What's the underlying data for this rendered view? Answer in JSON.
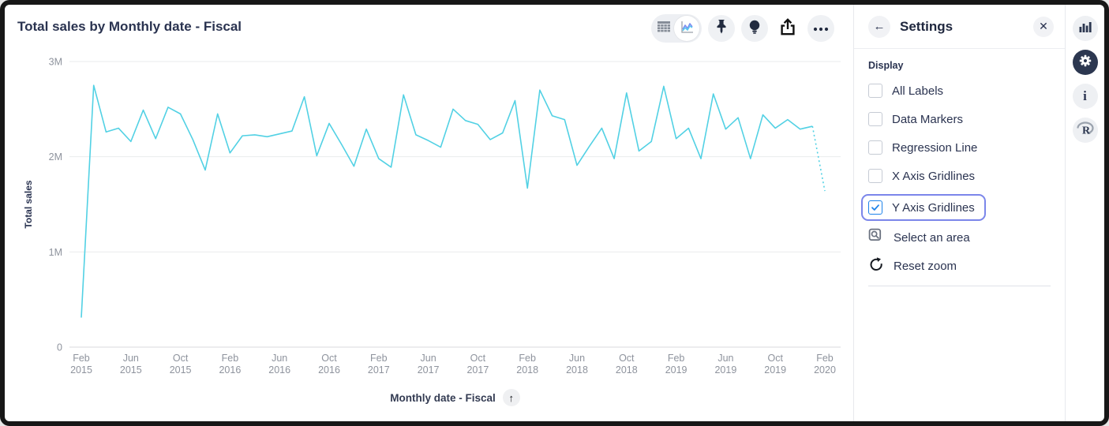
{
  "header": {
    "title": "Total sales by Monthly date - Fiscal"
  },
  "toolbar": {
    "segmented": {
      "options": [
        "table-view",
        "chart-view"
      ],
      "selected": "chart-view"
    },
    "icons": [
      "pin-icon",
      "lightbulb-icon",
      "share-icon",
      "ellipsis-icon"
    ]
  },
  "chart_data": {
    "type": "line",
    "title": "Total sales by Monthly date - Fiscal",
    "ylabel": "Total sales",
    "xlabel": "Monthly date - Fiscal",
    "unit": "millions",
    "ylim": [
      0,
      3000000
    ],
    "ytick_labels": [
      "0",
      "1M",
      "2M",
      "3M"
    ],
    "grid": "y-gridlines-only",
    "tick_every": 4,
    "last_segment_dotted": true,
    "line_color": "#52d1e4",
    "x": [
      "Feb 2015",
      "Mar 2015",
      "Apr 2015",
      "May 2015",
      "Jun 2015",
      "Jul 2015",
      "Aug 2015",
      "Sep 2015",
      "Oct 2015",
      "Nov 2015",
      "Dec 2015",
      "Jan 2016",
      "Feb 2016",
      "Mar 2016",
      "Apr 2016",
      "May 2016",
      "Jun 2016",
      "Jul 2016",
      "Aug 2016",
      "Sep 2016",
      "Oct 2016",
      "Nov 2016",
      "Dec 2016",
      "Jan 2017",
      "Feb 2017",
      "Mar 2017",
      "Apr 2017",
      "May 2017",
      "Jun 2017",
      "Jul 2017",
      "Aug 2017",
      "Sep 2017",
      "Oct 2017",
      "Nov 2017",
      "Dec 2017",
      "Jan 2018",
      "Feb 2018",
      "Mar 2018",
      "Apr 2018",
      "May 2018",
      "Jun 2018",
      "Jul 2018",
      "Aug 2018",
      "Sep 2018",
      "Oct 2018",
      "Nov 2018",
      "Dec 2018",
      "Jan 2019",
      "Feb 2019",
      "Mar 2019",
      "Apr 2019",
      "May 2019",
      "Jun 2019",
      "Jul 2019",
      "Aug 2019",
      "Sep 2019",
      "Oct 2019",
      "Nov 2019",
      "Dec 2019",
      "Jan 2020",
      "Feb 2020"
    ],
    "values_millions": [
      0.31,
      2.75,
      2.26,
      2.3,
      2.16,
      2.49,
      2.19,
      2.52,
      2.45,
      2.18,
      1.86,
      2.45,
      2.04,
      2.22,
      2.23,
      2.21,
      2.24,
      2.27,
      2.63,
      2.01,
      2.35,
      2.13,
      1.9,
      2.29,
      1.98,
      1.89,
      2.65,
      2.23,
      2.17,
      2.1,
      2.5,
      2.38,
      2.34,
      2.18,
      2.25,
      2.59,
      1.67,
      2.7,
      2.43,
      2.39,
      1.91,
      2.11,
      2.3,
      1.98,
      2.67,
      2.06,
      2.16,
      2.74,
      2.19,
      2.3,
      1.98,
      2.66,
      2.29,
      2.41,
      1.98,
      2.44,
      2.3,
      2.39,
      2.29,
      2.32,
      1.64
    ]
  },
  "xaxis": {
    "label": "Monthly date - Fiscal",
    "sort_icon": "arrow-up-icon"
  },
  "settings_panel": {
    "title": "Settings",
    "section_label": "Display",
    "checkboxes": [
      {
        "label": "All Labels",
        "checked": false
      },
      {
        "label": "Data Markers",
        "checked": false
      },
      {
        "label": "Regression Line",
        "checked": false
      },
      {
        "label": "X Axis Gridlines",
        "checked": false
      },
      {
        "label": "Y Axis Gridlines",
        "checked": true,
        "focused": true
      }
    ],
    "actions": [
      {
        "label": "Select an area",
        "icon": "select-area-icon"
      },
      {
        "label": "Reset zoom",
        "icon": "reset-zoom-icon"
      }
    ]
  },
  "right_rail": {
    "icons": [
      "bar-chart-icon",
      "gear-icon",
      "info-icon",
      "r-logo-icon"
    ],
    "active": "gear-icon"
  },
  "colors": {
    "line": "#52d1e4",
    "checkbox_checked": "#1d83ea",
    "focus_ring": "#7b86ea",
    "active_circle": "#2c3750",
    "gridline": "#eaebed",
    "axis_text": "#8e939d",
    "text_dark": "#2a3350"
  }
}
